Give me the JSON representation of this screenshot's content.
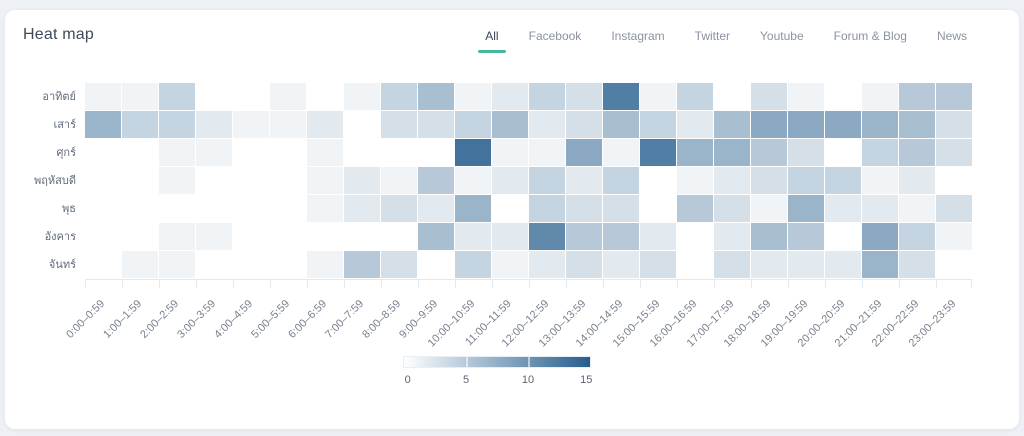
{
  "header": {
    "title": "Heat map",
    "tabs": [
      {
        "label": "All",
        "active": true
      },
      {
        "label": "Facebook",
        "active": false
      },
      {
        "label": "Instagram",
        "active": false
      },
      {
        "label": "Twitter",
        "active": false
      },
      {
        "label": "Youtube",
        "active": false
      },
      {
        "label": "Forum & Blog",
        "active": false
      },
      {
        "label": "News",
        "active": false
      }
    ]
  },
  "chart_data": {
    "type": "heatmap",
    "rows": [
      "อาทิตย์",
      "เสาร์",
      "ศุกร์",
      "พฤหัสบดี",
      "พุธ",
      "อังคาร",
      "จันทร์"
    ],
    "columns": [
      "0:00–0:59",
      "1:00–1:59",
      "2:00–2:59",
      "3:00–3:59",
      "4:00–4:59",
      "5:00–5:59",
      "6:00–6:59",
      "7:00–7:59",
      "8:00–8:59",
      "9:00–9:59",
      "10:00–10:59",
      "11:00–11:59",
      "12:00–12:59",
      "13:00–13:59",
      "14:00–14:59",
      "15:00–15:59",
      "16:00–16:59",
      "17:00–17:59",
      "18:00–18:59",
      "19:00–19:59",
      "20:00–20:59",
      "21:00–21:59",
      "22:00–22:59",
      "23:00–23:59"
    ],
    "values": [
      [
        1,
        1,
        4,
        0,
        0,
        1,
        0,
        1,
        4,
        6,
        1,
        2,
        4,
        3,
        12,
        1,
        4,
        0,
        3,
        1,
        0,
        1,
        5,
        5
      ],
      [
        7,
        4,
        4,
        2,
        1,
        1,
        2,
        0,
        3,
        3,
        4,
        6,
        2,
        3,
        6,
        4,
        2,
        6,
        8,
        8,
        8,
        7,
        6,
        3
      ],
      [
        0,
        0,
        1,
        1,
        0,
        0,
        1,
        0,
        0,
        0,
        13,
        1,
        1,
        8,
        1,
        12,
        7,
        7,
        5,
        3,
        0,
        4,
        5,
        3
      ],
      [
        0,
        0,
        1,
        0,
        0,
        0,
        1,
        2,
        1,
        5,
        1,
        2,
        4,
        2,
        4,
        0,
        1,
        2,
        3,
        4,
        4,
        1,
        2,
        0
      ],
      [
        0,
        0,
        0,
        0,
        0,
        0,
        1,
        2,
        3,
        2,
        7,
        0,
        4,
        3,
        3,
        0,
        5,
        3,
        1,
        7,
        2,
        2,
        1,
        3
      ],
      [
        0,
        0,
        1,
        1,
        0,
        0,
        0,
        0,
        0,
        6,
        2,
        2,
        11,
        5,
        5,
        2,
        0,
        2,
        6,
        5,
        0,
        8,
        4,
        1
      ],
      [
        0,
        1,
        1,
        0,
        0,
        0,
        1,
        5,
        3,
        0,
        4,
        1,
        2,
        3,
        2,
        3,
        0,
        3,
        2,
        2,
        2,
        7,
        3,
        0
      ]
    ],
    "scale": {
      "min": 0,
      "max": 15,
      "ticks": [
        0,
        5,
        10,
        15
      ],
      "min_color": "#ffffff",
      "max_color": "#265e8e"
    },
    "legend_position": "bottom-center",
    "grid": "white 1px gaps between cells",
    "xlabel": "",
    "ylabel": ""
  },
  "colors": {
    "page_bg": "#edf0f4",
    "card_bg": "#ffffff",
    "accent_teal": "#45b8a1",
    "tab_active_text": "#3c4555",
    "tab_inactive_text": "#8b93a1",
    "title_text": "#3f4a5a",
    "axis_text": "#79818e",
    "grid_line": "#e1e8f1"
  }
}
